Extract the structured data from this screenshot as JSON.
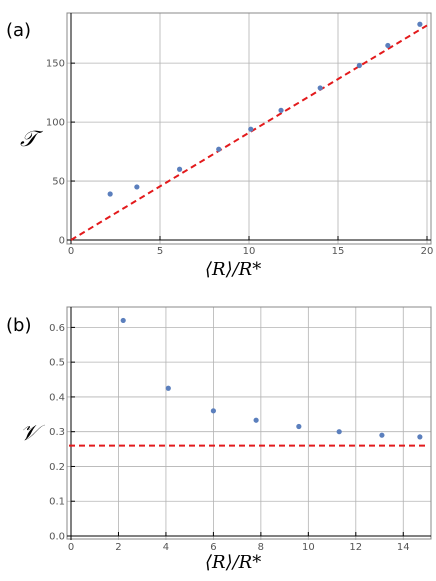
{
  "panels": [
    {
      "label": "(a)"
    },
    {
      "label": "(b)"
    }
  ],
  "chart_data": [
    {
      "type": "scatter",
      "panel_label": "(a)",
      "xlabel": "⟨R⟩/R*",
      "ylabel": "𝒯",
      "xlim": [
        0,
        20
      ],
      "ylim": [
        0,
        190
      ],
      "xticks": [
        0,
        5,
        10,
        15,
        20
      ],
      "yticks": [
        0,
        50,
        100,
        150
      ],
      "grid": true,
      "points": [
        {
          "x": 2.2,
          "y": 39
        },
        {
          "x": 3.7,
          "y": 45
        },
        {
          "x": 6.1,
          "y": 60
        },
        {
          "x": 8.3,
          "y": 77
        },
        {
          "x": 10.1,
          "y": 94
        },
        {
          "x": 11.8,
          "y": 110
        },
        {
          "x": 14.0,
          "y": 129
        },
        {
          "x": 16.2,
          "y": 148
        },
        {
          "x": 17.8,
          "y": 165
        },
        {
          "x": 19.6,
          "y": 183
        }
      ],
      "fit_line": {
        "x": [
          0,
          20
        ],
        "y": [
          0,
          182
        ],
        "style": "dashed",
        "color": "#e31a1c"
      },
      "marker_color": "#5b7fbd"
    },
    {
      "type": "scatter",
      "panel_label": "(b)",
      "xlabel": "⟨R⟩/R*",
      "ylabel": "𝒱",
      "xlim": [
        0,
        15
      ],
      "ylim": [
        0,
        0.65
      ],
      "xticks": [
        0,
        2,
        4,
        6,
        8,
        10,
        12,
        14
      ],
      "yticks": [
        0.0,
        0.1,
        0.2,
        0.3,
        0.4,
        0.5,
        0.6
      ],
      "grid": true,
      "points": [
        {
          "x": 2.2,
          "y": 0.62
        },
        {
          "x": 4.1,
          "y": 0.425
        },
        {
          "x": 6.0,
          "y": 0.36
        },
        {
          "x": 7.8,
          "y": 0.333
        },
        {
          "x": 9.6,
          "y": 0.315
        },
        {
          "x": 11.3,
          "y": 0.3
        },
        {
          "x": 13.1,
          "y": 0.29
        },
        {
          "x": 14.7,
          "y": 0.285
        }
      ],
      "hline": {
        "y": 0.26,
        "style": "dashed",
        "color": "#e31a1c"
      },
      "marker_color": "#5b7fbd"
    }
  ]
}
